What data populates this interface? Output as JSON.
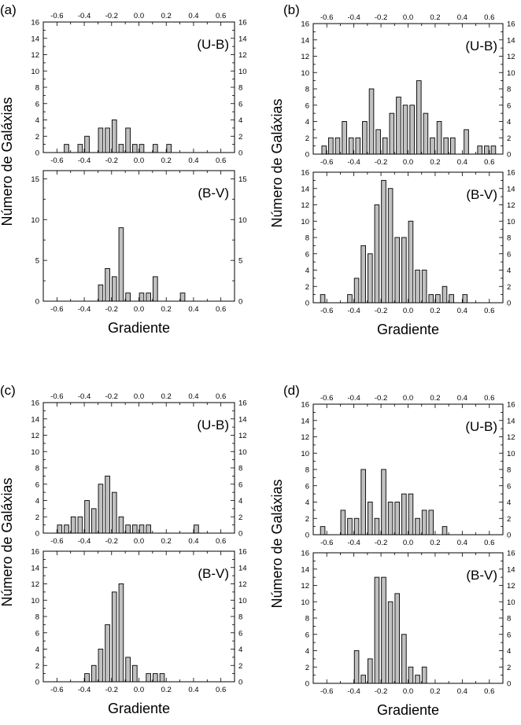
{
  "figure": {
    "xlabel": "Gradiente",
    "ylabel": "Número de Galáxias"
  },
  "chart_data": [
    {
      "type": "bar",
      "group": "(a)",
      "title": "(U-B)",
      "xlabel": "",
      "ylabel": "Número de Galáxias",
      "xlim": [
        -0.7,
        0.7
      ],
      "ylim": [
        0,
        16
      ],
      "xticks": [
        -0.6,
        -0.4,
        -0.2,
        0.0,
        0.2,
        0.4,
        0.6
      ],
      "yticks": [
        0,
        2,
        4,
        6,
        8,
        10,
        12,
        14,
        16
      ],
      "bin_width": 0.033,
      "x": [
        -0.53,
        -0.43,
        -0.38,
        -0.28,
        -0.23,
        -0.18,
        -0.13,
        -0.08,
        -0.03,
        0.02,
        0.12,
        0.22
      ],
      "values": [
        1,
        1,
        2,
        3,
        3,
        4,
        1,
        3,
        1,
        1,
        1,
        1
      ]
    },
    {
      "type": "bar",
      "group": "(a)",
      "title": "(B-V)",
      "xlabel": "Gradiente",
      "ylabel": "Número de Galáxias",
      "xlim": [
        -0.7,
        0.7
      ],
      "ylim": [
        0,
        16
      ],
      "xticks": [
        -0.6,
        -0.4,
        -0.2,
        0.0,
        0.2,
        0.4,
        0.6
      ],
      "yticks": [
        0,
        5,
        10,
        15
      ],
      "bin_width": 0.033,
      "x": [
        -0.28,
        -0.23,
        -0.18,
        -0.13,
        -0.08,
        0.02,
        0.07,
        0.12,
        0.32
      ],
      "values": [
        2,
        4,
        3,
        9,
        1,
        1,
        1,
        3,
        1
      ]
    },
    {
      "type": "bar",
      "group": "(b)",
      "title": "(U-B)",
      "xlabel": "",
      "ylabel": "Número de Galáxias",
      "xlim": [
        -0.7,
        0.7
      ],
      "ylim": [
        0,
        16
      ],
      "xticks": [
        -0.6,
        -0.4,
        -0.2,
        0.0,
        0.2,
        0.4,
        0.6
      ],
      "yticks": [
        0,
        2,
        4,
        6,
        8,
        10,
        12,
        14,
        16
      ],
      "bin_width": 0.033,
      "x": [
        -0.62,
        -0.57,
        -0.52,
        -0.47,
        -0.42,
        -0.37,
        -0.32,
        -0.27,
        -0.22,
        -0.17,
        -0.12,
        -0.07,
        -0.02,
        0.03,
        0.08,
        0.13,
        0.18,
        0.23,
        0.28,
        0.33,
        0.43,
        0.53,
        0.58,
        0.63
      ],
      "values": [
        1,
        2,
        2,
        4,
        2,
        2,
        4,
        8,
        3,
        2,
        5,
        7,
        6,
        6,
        9,
        5,
        2,
        4,
        2,
        2,
        3,
        1,
        1,
        1
      ]
    },
    {
      "type": "bar",
      "group": "(b)",
      "title": "(B-V)",
      "xlabel": "Gradiente",
      "ylabel": "Número de Galáxias",
      "xlim": [
        -0.7,
        0.7
      ],
      "ylim": [
        0,
        16
      ],
      "xticks": [
        -0.6,
        -0.4,
        -0.2,
        0.0,
        0.2,
        0.4,
        0.6
      ],
      "yticks": [
        0,
        2,
        4,
        6,
        8,
        10,
        12,
        14,
        16
      ],
      "bin_width": 0.033,
      "x": [
        -0.63,
        -0.43,
        -0.38,
        -0.33,
        -0.28,
        -0.23,
        -0.18,
        -0.13,
        -0.08,
        -0.03,
        0.02,
        0.07,
        0.12,
        0.17,
        0.22,
        0.27,
        0.32,
        0.42
      ],
      "values": [
        1,
        1,
        3,
        7,
        6,
        12,
        15,
        14,
        8,
        8,
        10,
        4,
        4,
        1,
        1,
        2,
        1,
        1
      ]
    },
    {
      "type": "bar",
      "group": "(c)",
      "title": "(U-B)",
      "xlabel": "",
      "ylabel": "Número de Galáxias",
      "xlim": [
        -0.7,
        0.7
      ],
      "ylim": [
        0,
        16
      ],
      "xticks": [
        -0.6,
        -0.4,
        -0.2,
        0.0,
        0.2,
        0.4,
        0.6
      ],
      "yticks": [
        0,
        2,
        4,
        6,
        8,
        10,
        12,
        14,
        16
      ],
      "bin_width": 0.033,
      "x": [
        -0.58,
        -0.53,
        -0.48,
        -0.43,
        -0.38,
        -0.33,
        -0.28,
        -0.23,
        -0.18,
        -0.13,
        -0.08,
        -0.03,
        0.02,
        0.07,
        0.42
      ],
      "values": [
        1,
        1,
        2,
        2,
        4,
        3,
        6,
        7,
        5,
        2,
        1,
        1,
        1,
        1,
        1
      ]
    },
    {
      "type": "bar",
      "group": "(c)",
      "title": "(B-V)",
      "xlabel": "Gradiente",
      "ylabel": "Número de Galáxias",
      "xlim": [
        -0.7,
        0.7
      ],
      "ylim": [
        0,
        16
      ],
      "xticks": [
        -0.6,
        -0.4,
        -0.2,
        0.0,
        0.2,
        0.4,
        0.6
      ],
      "yticks": [
        0,
        2,
        4,
        6,
        8,
        10,
        12,
        14,
        16
      ],
      "bin_width": 0.033,
      "x": [
        -0.38,
        -0.33,
        -0.28,
        -0.23,
        -0.18,
        -0.13,
        -0.08,
        -0.03,
        0.07,
        0.12,
        0.17
      ],
      "values": [
        1,
        2,
        4,
        7,
        11,
        12,
        3,
        2,
        1,
        1,
        1
      ]
    },
    {
      "type": "bar",
      "group": "(d)",
      "title": "(U-B)",
      "xlabel": "",
      "ylabel": "Número de Galáxias",
      "xlim": [
        -0.7,
        0.7
      ],
      "ylim": [
        0,
        16
      ],
      "xticks": [
        -0.6,
        -0.4,
        -0.2,
        0.0,
        0.2,
        0.4,
        0.6
      ],
      "yticks": [
        0,
        2,
        4,
        6,
        8,
        10,
        12,
        14,
        16
      ],
      "bin_width": 0.033,
      "x": [
        -0.63,
        -0.48,
        -0.43,
        -0.38,
        -0.33,
        -0.28,
        -0.23,
        -0.18,
        -0.13,
        -0.08,
        -0.03,
        0.02,
        0.07,
        0.12,
        0.17,
        0.27
      ],
      "values": [
        1,
        3,
        2,
        2,
        8,
        4,
        2,
        8,
        4,
        4,
        5,
        5,
        2,
        3,
        3,
        1
      ]
    },
    {
      "type": "bar",
      "group": "(d)",
      "title": "(B-V)",
      "xlabel": "Gradiente",
      "ylabel": "Número de Galáxias",
      "xlim": [
        -0.7,
        0.7
      ],
      "ylim": [
        0,
        16
      ],
      "xticks": [
        -0.6,
        -0.4,
        -0.2,
        0.0,
        0.2,
        0.4,
        0.6
      ],
      "yticks": [
        0,
        2,
        4,
        6,
        8,
        10,
        12,
        14,
        16
      ],
      "bin_width": 0.033,
      "x": [
        -0.38,
        -0.33,
        -0.28,
        -0.23,
        -0.18,
        -0.13,
        -0.08,
        -0.03,
        0.02,
        0.07,
        0.12
      ],
      "values": [
        4,
        1,
        3,
        13,
        13,
        10,
        11,
        6,
        2,
        1,
        2
      ]
    }
  ],
  "colors": {
    "bar_fill": "#c0c0c0",
    "bar_stroke": "#000000",
    "axis": "#000000",
    "background": "#ffffff"
  }
}
